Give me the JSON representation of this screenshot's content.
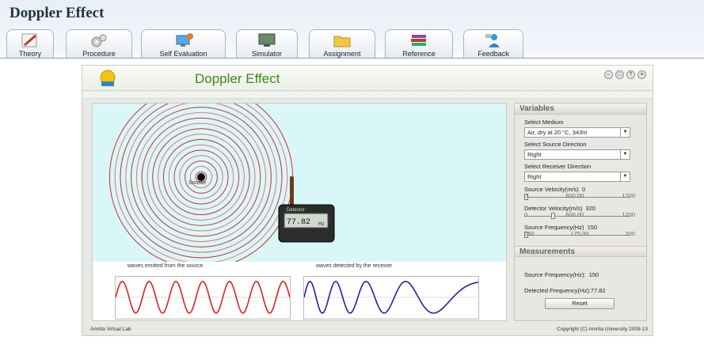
{
  "page_title": "Doppler Effect",
  "tabs": [
    {
      "label": "Theory",
      "icon": "pencil-icon"
    },
    {
      "label": "Procedure",
      "icon": "gears-icon"
    },
    {
      "label": "Self Evaluation",
      "icon": "computer-icon"
    },
    {
      "label": "Simulator",
      "icon": "monitor-icon"
    },
    {
      "label": "Assignment",
      "icon": "folder-icon"
    },
    {
      "label": "Reference",
      "icon": "books-icon"
    },
    {
      "label": "Feedback",
      "icon": "person-icon"
    }
  ],
  "simulator": {
    "title": "Doppler Effect",
    "source_label": "Source",
    "detector_label": "Detector",
    "detector_reading": "77.82",
    "detector_unit": "Hz",
    "emitted_caption": "waves emitted from the source",
    "detected_caption": "waves detected by the receiver",
    "footer_left": "Amrita Virtual Lab",
    "footer_right": "Copyright (C) Amrita University 2009-13"
  },
  "variables": {
    "heading": "Variables",
    "medium_label": "Select Medium",
    "medium_value": "Air, dry at 20 °C, 343m",
    "source_dir_label": "Select Source Direction",
    "source_dir_value": "Right",
    "receiver_dir_label": "Select Receiver Direction",
    "receiver_dir_value": "Right",
    "source_vel_label": "Source Velocity(m/s)",
    "source_vel_value": "0",
    "source_vel_ticks": [
      "0",
      "600.00",
      "1200"
    ],
    "detector_vel_label": "Detector  Velocity(m/s)",
    "detector_vel_value": "320",
    "detector_vel_ticks": [
      "0",
      "600.00",
      "1200"
    ],
    "source_freq_label": "Source Frequency(Hz)",
    "source_freq_value": "150",
    "source_freq_ticks": [
      "150",
      "175.00",
      "200"
    ],
    "source_vel_level": 0,
    "detector_vel_level": 0.267,
    "source_freq_level": 0
  },
  "measurements": {
    "heading": "Measurements",
    "source_freq_label": "Source Frequency(Hz):",
    "source_freq_value": "150",
    "detected_freq_label": "Detected Frequency(Hz):",
    "detected_freq_value": "77.82",
    "reset_label": "Reset"
  }
}
